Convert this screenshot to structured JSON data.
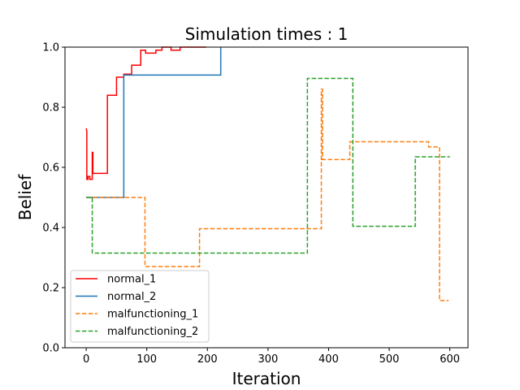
{
  "chart_data": {
    "type": "line",
    "title": "Simulation times : 1",
    "xlabel": "Iteration",
    "ylabel": "Belief",
    "xlim": [
      -35,
      630
    ],
    "ylim": [
      0.0,
      1.0
    ],
    "xticks": [
      0,
      100,
      200,
      300,
      400,
      500,
      600
    ],
    "xtick_labels": [
      "0",
      "100",
      "200",
      "300",
      "400",
      "500",
      "600"
    ],
    "yticks": [
      0.0,
      0.2,
      0.4,
      0.6,
      0.8,
      1.0
    ],
    "ytick_labels": [
      "0.0",
      "0.2",
      "0.4",
      "0.6",
      "0.8",
      "1.0"
    ],
    "grid": false,
    "legend_position": "lower-left",
    "series": [
      {
        "name": "normal_1",
        "color": "#ff0000",
        "dash": "solid",
        "x": [
          0,
          1,
          1,
          3,
          3,
          6,
          6,
          10,
          10,
          11,
          11,
          12,
          12,
          35,
          35,
          38,
          38,
          50,
          50,
          62,
          62,
          70,
          70,
          75,
          75,
          82,
          82,
          90,
          90,
          98,
          98,
          115,
          115,
          125,
          125,
          140,
          140,
          155,
          155,
          175,
          175,
          198
        ],
        "y": [
          0.73,
          0.72,
          0.56,
          0.56,
          0.57,
          0.57,
          0.56,
          0.56,
          0.65,
          0.65,
          0.58,
          0.58,
          0.58,
          0.58,
          0.84,
          0.84,
          0.84,
          0.84,
          0.9,
          0.9,
          0.91,
          0.91,
          0.91,
          0.91,
          0.94,
          0.94,
          0.94,
          0.94,
          0.99,
          0.99,
          0.98,
          0.98,
          0.99,
          0.99,
          1.0,
          1.0,
          0.99,
          0.99,
          1.0,
          1.0,
          1.0,
          1.0
        ]
      },
      {
        "name": "normal_2",
        "color": "#1f77b4",
        "dash": "solid",
        "x": [
          0,
          62,
          62,
          222,
          222
        ],
        "y": [
          0.5,
          0.5,
          0.907,
          0.907,
          1.0
        ]
      },
      {
        "name": "malfunctioning_1",
        "color": "#ff7f0e",
        "dash": "dashed",
        "x": [
          0,
          97,
          97,
          187,
          187,
          388,
          388,
          390,
          390,
          392,
          392,
          435,
          435,
          438,
          438,
          565,
          565,
          583,
          583,
          588,
          588,
          598
        ],
        "y": [
          0.5,
          0.5,
          0.27,
          0.27,
          0.396,
          0.396,
          0.86,
          0.86,
          0.626,
          0.626,
          0.626,
          0.626,
          0.685,
          0.685,
          0.685,
          0.685,
          0.668,
          0.668,
          0.157,
          0.157,
          0.157,
          0.157
        ]
      },
      {
        "name": "malfunctioning_2",
        "color": "#2ca02c",
        "dash": "dashed",
        "x": [
          0,
          10,
          10,
          365,
          365,
          440,
          440,
          543,
          543,
          600
        ],
        "y": [
          0.5,
          0.5,
          0.315,
          0.315,
          0.896,
          0.896,
          0.404,
          0.404,
          0.635,
          0.635
        ]
      }
    ]
  }
}
